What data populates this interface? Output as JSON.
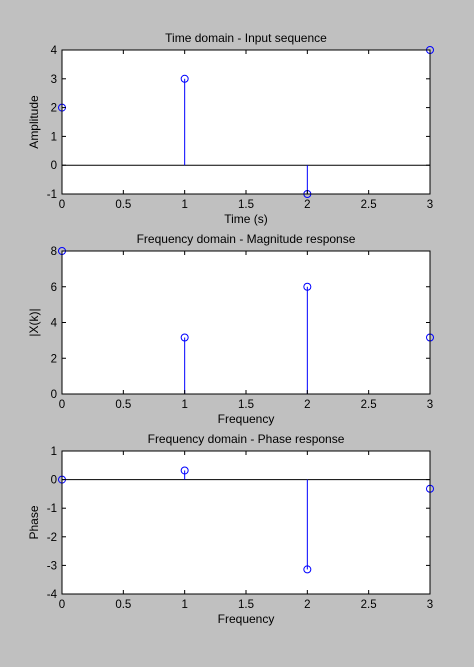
{
  "chart_data": [
    {
      "type": "stem",
      "title": "Time domain - Input sequence",
      "xlabel": "Time (s)",
      "ylabel": "Amplitude",
      "xlim": [
        0,
        3
      ],
      "ylim": [
        -1,
        4
      ],
      "xticks": [
        0,
        0.5,
        1,
        1.5,
        2,
        2.5,
        3
      ],
      "xtick_labels": [
        "0",
        "0.5",
        "1",
        "1.5",
        "2",
        "2.5",
        "3"
      ],
      "yticks": [
        -1,
        0,
        1,
        2,
        3,
        4
      ],
      "ytick_labels": [
        "-1",
        "0",
        "1",
        "2",
        "3",
        "4"
      ],
      "x": [
        0,
        1,
        2,
        3
      ],
      "y": [
        2,
        3,
        -1,
        4
      ],
      "baseline": 0,
      "color": "#0000ff",
      "grid": false
    },
    {
      "type": "stem",
      "title": "Frequency domain - Magnitude response",
      "xlabel": "Frequency",
      "ylabel": "|X(k)|",
      "xlim": [
        0,
        3
      ],
      "ylim": [
        0,
        8
      ],
      "xticks": [
        0,
        0.5,
        1,
        1.5,
        2,
        2.5,
        3
      ],
      "xtick_labels": [
        "0",
        "0.5",
        "1",
        "1.5",
        "2",
        "2.5",
        "3"
      ],
      "yticks": [
        0,
        2,
        4,
        6,
        8
      ],
      "ytick_labels": [
        "0",
        "2",
        "4",
        "6",
        "8"
      ],
      "x": [
        0,
        1,
        2,
        3
      ],
      "y": [
        8,
        3.16,
        6,
        3.16
      ],
      "baseline": 0,
      "color": "#0000ff",
      "grid": false
    },
    {
      "type": "stem",
      "title": "Frequency domain - Phase response",
      "xlabel": "Frequency",
      "ylabel": "Phase",
      "xlim": [
        0,
        3
      ],
      "ylim": [
        -4,
        1
      ],
      "xticks": [
        0,
        0.5,
        1,
        1.5,
        2,
        2.5,
        3
      ],
      "xtick_labels": [
        "0",
        "0.5",
        "1",
        "1.5",
        "2",
        "2.5",
        "3"
      ],
      "yticks": [
        -4,
        -3,
        -2,
        -1,
        0,
        1
      ],
      "ytick_labels": [
        "-4",
        "-3",
        "-2",
        "-1",
        "0",
        "1"
      ],
      "x": [
        0,
        1,
        2,
        3
      ],
      "y": [
        0,
        0.32,
        -3.14,
        -0.32
      ],
      "baseline": 0,
      "color": "#0000ff",
      "grid": false
    }
  ]
}
